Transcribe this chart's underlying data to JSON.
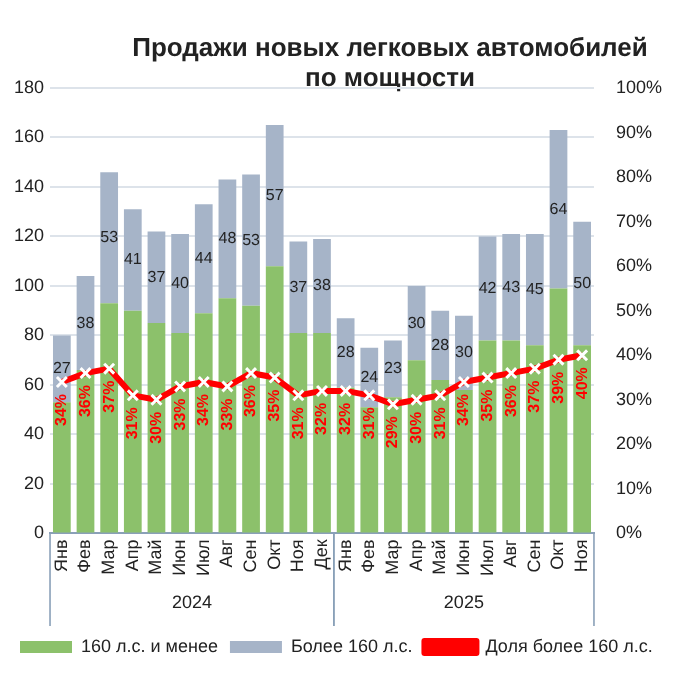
{
  "chart_data": {
    "type": "bar",
    "title": "Продажи новых легковых автомобилей по мощности",
    "stacked": true,
    "categories": [
      "Янв",
      "Фев",
      "Мар",
      "Апр",
      "Май",
      "Июн",
      "Июл",
      "Авг",
      "Сен",
      "Окт",
      "Ноя",
      "Дек",
      "Янв",
      "Фев",
      "Мар",
      "Апр",
      "Май",
      "Июн",
      "Июл",
      "Авг",
      "Сен",
      "Окт",
      "Ноя"
    ],
    "series": [
      {
        "name": "160 л.с. и менее",
        "color": "#8cc16b",
        "values": [
          53,
          66,
          93,
          90,
          85,
          81,
          89,
          95,
          92,
          108,
          81,
          81,
          59,
          51,
          55,
          70,
          62,
          58,
          78,
          78,
          76,
          99,
          76
        ]
      },
      {
        "name": "Более 160 л.с.",
        "color": "#a6b4c8",
        "values": [
          27,
          38,
          53,
          41,
          37,
          40,
          44,
          48,
          53,
          57,
          37,
          38,
          28,
          24,
          23,
          30,
          28,
          30,
          42,
          43,
          45,
          64,
          50
        ],
        "value_labels": [
          "27",
          "38",
          "53",
          "41",
          "37",
          "40",
          "44",
          "48",
          "53",
          "57",
          "37",
          "38",
          "28",
          "24",
          "23",
          "30",
          "28",
          "30",
          "42",
          "43",
          "45",
          "64",
          "50"
        ]
      },
      {
        "name": "Доля более 160 л.с.",
        "type": "line",
        "axis": "y2",
        "color": "#ff0000",
        "marker": "cross",
        "line_style": "solid",
        "values": [
          34,
          36,
          37,
          31,
          30,
          33,
          34,
          33,
          36,
          35,
          31,
          32,
          32,
          31,
          29,
          30,
          31,
          34,
          35,
          36,
          37,
          39,
          40
        ],
        "value_labels": [
          "34%",
          "36%",
          "37%",
          "31%",
          "30%",
          "33%",
          "34%",
          "33%",
          "36%",
          "35%",
          "31%",
          "32%",
          "32%",
          "31%",
          "29%",
          "30%",
          "31%",
          "34%",
          "35%",
          "36%",
          "37%",
          "39%",
          "40%"
        ]
      }
    ],
    "ylim": [
      0,
      180
    ],
    "yticks": [
      0,
      20,
      40,
      60,
      80,
      100,
      120,
      140,
      160,
      180
    ],
    "y2lim": [
      0,
      100
    ],
    "y2ticks": [
      {
        "value": 0,
        "label": "0%"
      },
      {
        "value": 10,
        "label": "10%"
      },
      {
        "value": 20,
        "label": "20%"
      },
      {
        "value": 30,
        "label": "30%"
      },
      {
        "value": 40,
        "label": "40%"
      },
      {
        "value": 50,
        "label": "50%"
      },
      {
        "value": 60,
        "label": "60%"
      },
      {
        "value": 70,
        "label": "70%"
      },
      {
        "value": 80,
        "label": "80%"
      },
      {
        "value": 90,
        "label": "90%"
      },
      {
        "value": 100,
        "label": "100%"
      }
    ],
    "grid": "y",
    "legend": "bottom",
    "annotations": [
      "2024",
      "2025"
    ]
  }
}
